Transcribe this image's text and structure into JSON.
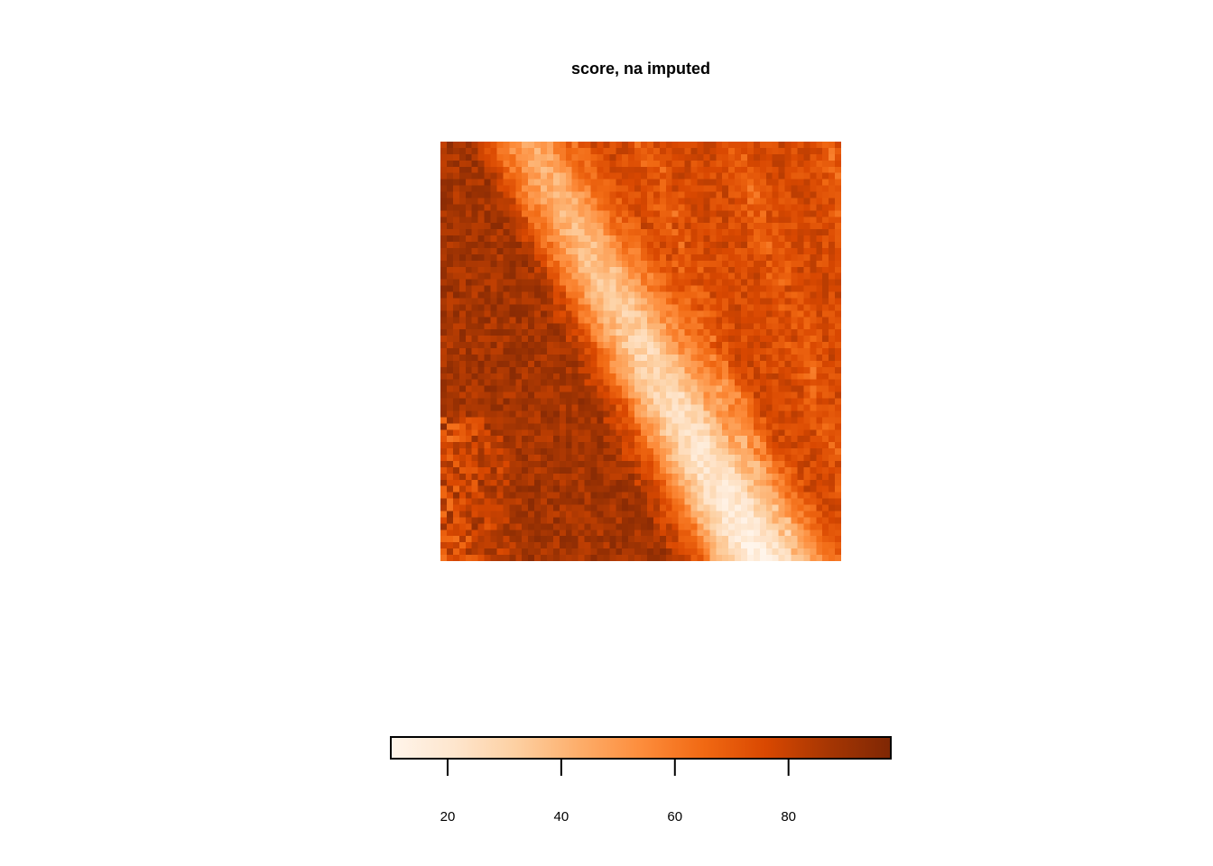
{
  "chart_data": {
    "type": "heatmap",
    "title": "score, na imputed",
    "xlabel": "",
    "ylabel": "",
    "grid": false,
    "legend_placement": "bottom",
    "color_scale": {
      "range": [
        10,
        98
      ],
      "ticks": [
        20,
        40,
        60,
        80
      ],
      "tick_labels": [
        "20",
        "40",
        "60",
        "80"
      ],
      "colors": [
        "#fff5eb",
        "#fee6ce",
        "#fdd0a2",
        "#fdae6b",
        "#fd8d3c",
        "#f16913",
        "#d94801",
        "#a63603",
        "#7f2704"
      ]
    },
    "grid_size": {
      "cols": 64,
      "rows": 67
    },
    "description_values": {
      "background_level": 82,
      "ridge_min": 12,
      "ridge_max": 45
    }
  }
}
